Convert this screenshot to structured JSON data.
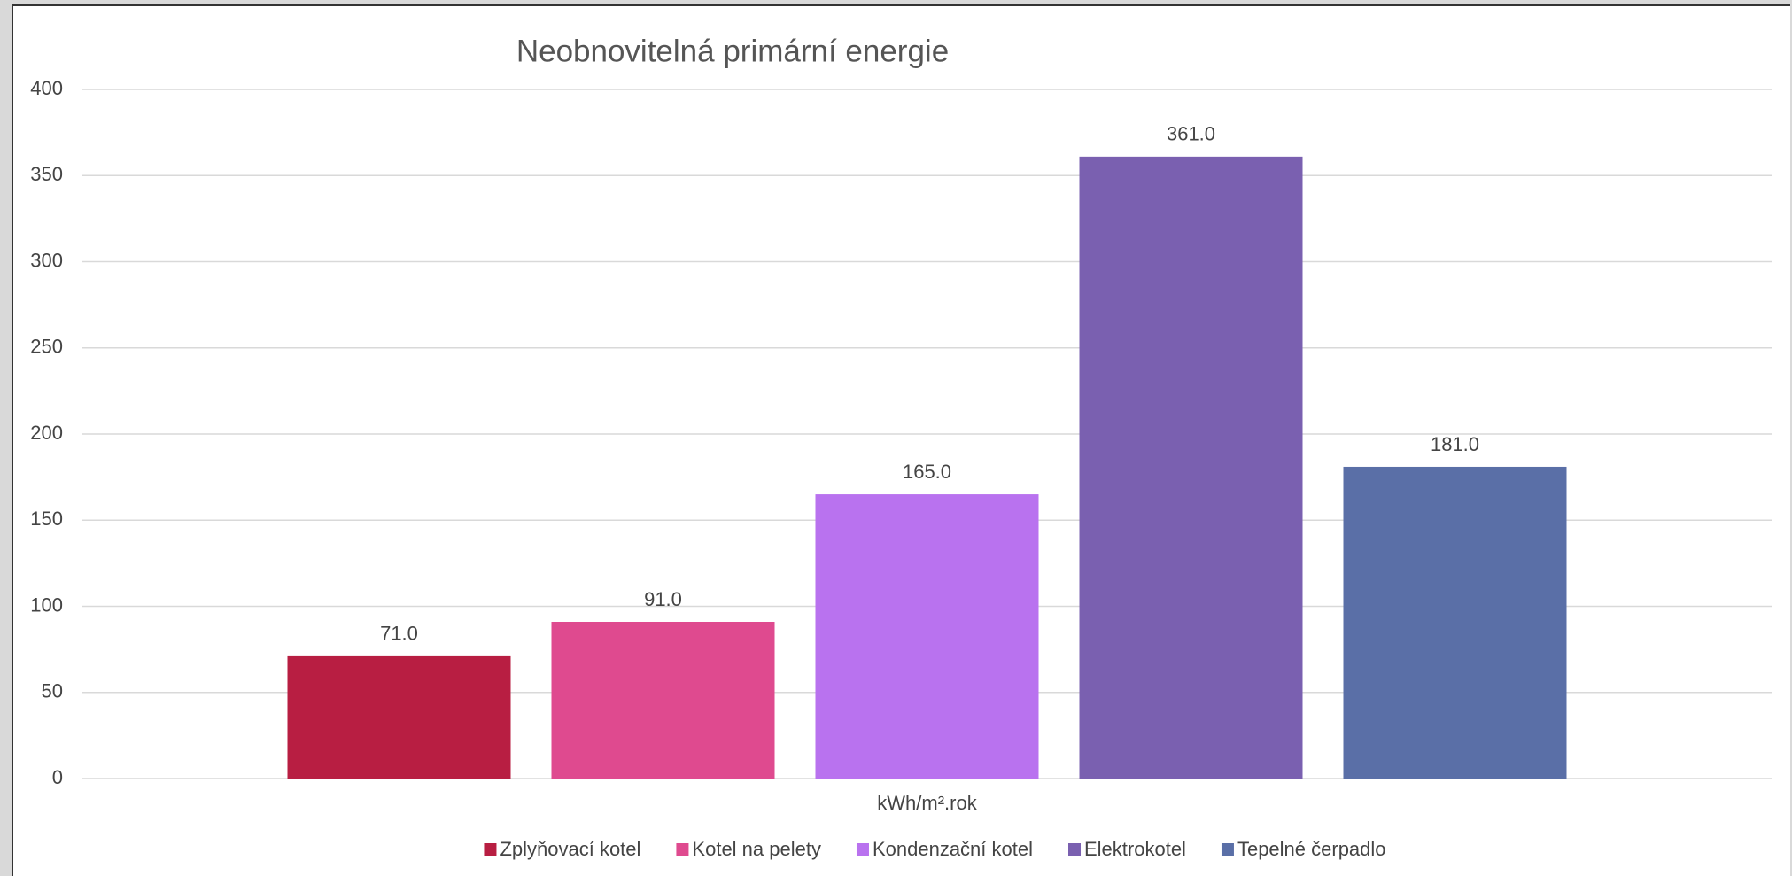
{
  "chart_data": {
    "type": "bar",
    "title": "Neobnovitelná primární energie",
    "categories": [
      "kWh/m².rok"
    ],
    "series": [
      {
        "name": "Zplyňovací kotel",
        "color": "#b81e42",
        "values": [
          71
        ],
        "value_labels": [
          "71.0"
        ]
      },
      {
        "name": "Kotel na pelety",
        "color": "#df4a8f",
        "values": [
          91
        ],
        "value_labels": [
          "91.0"
        ]
      },
      {
        "name": "Kondenzační kotel",
        "color": "#b972ef",
        "values": [
          165
        ],
        "value_labels": [
          "165.0"
        ]
      },
      {
        "name": "Elektrokotel",
        "color": "#7a60b0",
        "values": [
          361
        ],
        "value_labels": [
          "361.0"
        ]
      },
      {
        "name": "Tepelné čerpadlo",
        "color": "#5a6fa7",
        "values": [
          181
        ],
        "value_labels": [
          "181.0"
        ]
      }
    ],
    "ylim": [
      0,
      400
    ],
    "yticks": [
      0,
      50,
      100,
      150,
      200,
      250,
      300,
      350,
      400
    ],
    "grid": true,
    "legend": "bottom"
  }
}
